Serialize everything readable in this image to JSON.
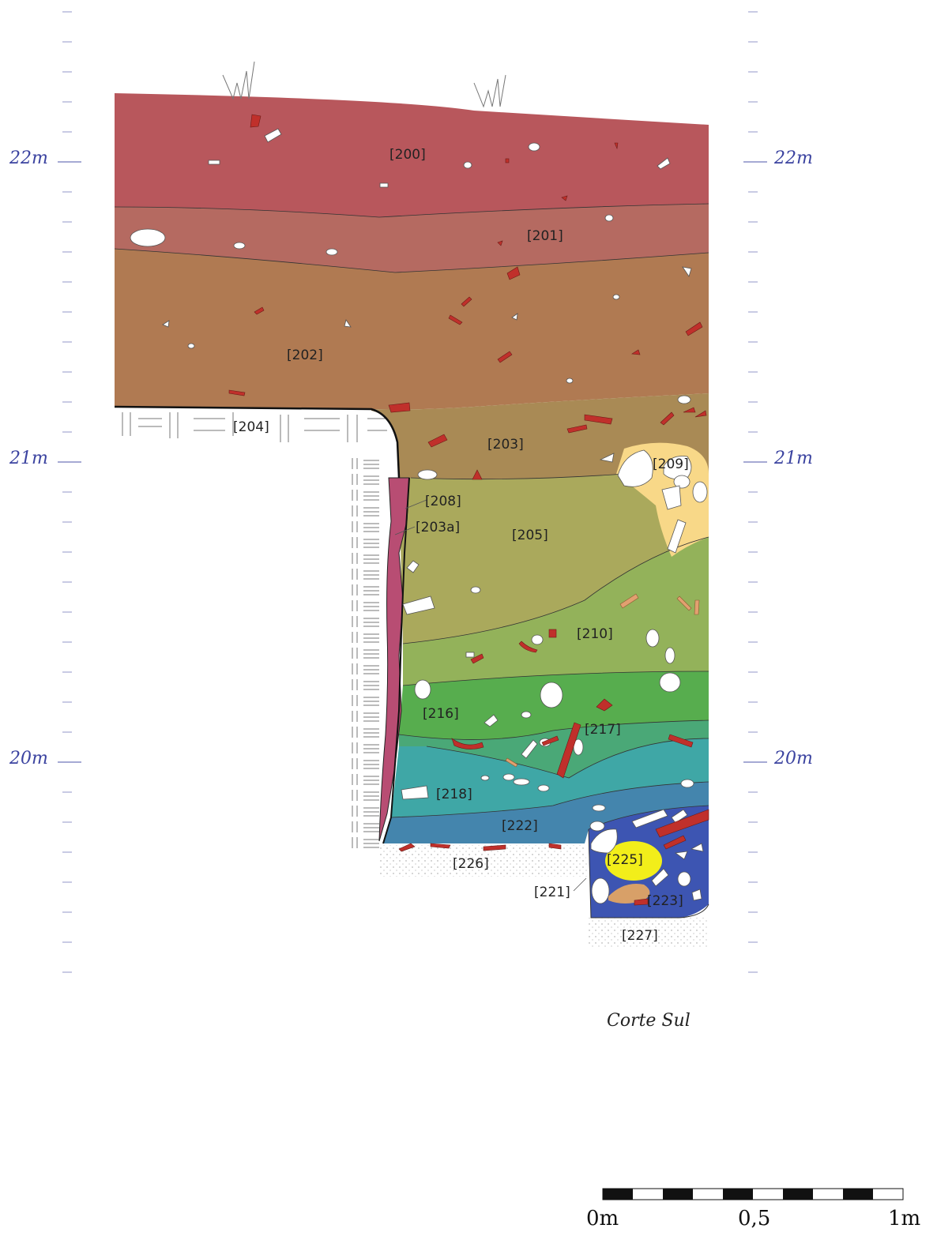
{
  "elevations": {
    "left": [
      "22m",
      "21m",
      "20m"
    ],
    "right": [
      "22m",
      "21m",
      "20m"
    ]
  },
  "units": {
    "u200": "[200]",
    "u201": "[201]",
    "u202": "[202]",
    "u203": "[203]",
    "u203a": "[203a]",
    "u204": "[204]",
    "u205": "[205]",
    "u208": "[208]",
    "u209": "[209]",
    "u210": "[210]",
    "u216": "[216]",
    "u217": "[217]",
    "u218": "[218]",
    "u221": "[221]",
    "u222": "[222]",
    "u223": "[223]",
    "u225": "[225]",
    "u226": "[226]",
    "u227": "[227]"
  },
  "caption": "Corte Sul",
  "scale": {
    "start": "0m",
    "mid": "0,5",
    "end": "1m"
  },
  "colors": {
    "u200": "#b8575c",
    "u201": "#b56a61",
    "u202": "#b07a52",
    "u203": "#a98a55",
    "u205": "#aaa95c",
    "u210": "#93b25a",
    "u216": "#57ad4e",
    "u217": "#4aa877",
    "u218": "#3fa7a6",
    "u222": "#4485ad",
    "u223": "#3d55b2",
    "u209": "#f8d888",
    "u225": "#f2ee1a",
    "u203a": "#b84d73",
    "axis": "#3b43a0",
    "brick": "#c0302b"
  }
}
